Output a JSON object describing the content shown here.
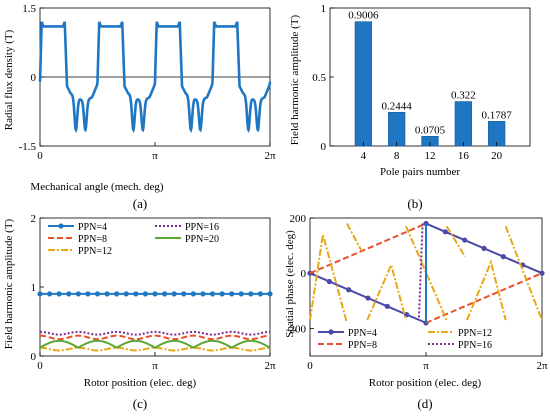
{
  "colors": {
    "blue": "#1f77c4",
    "orange": "#e8502a",
    "yellow": "#e6a817",
    "purple": "#7b2d8e",
    "green": "#5aa832",
    "navy": "#4a4aa6",
    "axis": "#000000"
  },
  "panel_labels": {
    "a": "(a)",
    "b": "(b)",
    "c": "(c)",
    "d": "(d)"
  },
  "chart_data": [
    {
      "id": "a",
      "type": "line",
      "xlabel": "Mechanical angle (mech. deg)",
      "ylabel": "Radial flux density (T)",
      "xlim": [
        0,
        6.2832
      ],
      "ylim": [
        -1.5,
        1.5
      ],
      "xticks": [
        "0",
        "π",
        "2π"
      ],
      "yticks": [
        "-1.5",
        "0",
        "1.5"
      ],
      "zero_line": true,
      "description_of_shape": "period 2π/4 (PPN=4); positive plateau ≈1.15 T with spikes to ≈1.2 T at edges; negative region with double dip to ≈-1.15 T",
      "series": [
        {
          "color": "blue",
          "periods": 4,
          "pos_level": 1.15,
          "neg_level": -1.15,
          "edge_spike": 1.2
        }
      ]
    },
    {
      "id": "b",
      "type": "bar",
      "xlabel": "Pole pairs number",
      "ylabel": "Field harmonic amplitude (T)",
      "categories": [
        "4",
        "8",
        "12",
        "16",
        "20"
      ],
      "values": [
        0.9006,
        0.2444,
        0.0705,
        0.322,
        0.1787
      ],
      "data_labels": [
        "0.9006",
        "0.2444",
        "0.0705",
        "0.322",
        "0.1787"
      ],
      "ylim": [
        0,
        1
      ],
      "yticks": [
        "0",
        "0.5",
        "1"
      ],
      "color": "blue"
    },
    {
      "id": "c",
      "type": "line",
      "xlabel": "Rotor position (elec. deg)",
      "ylabel": "Field harmonic amplitude (T)",
      "xlim": [
        0,
        6.2832
      ],
      "ylim": [
        0,
        2
      ],
      "xticks": [
        "0",
        "π",
        "2π"
      ],
      "yticks": [
        "0",
        "1",
        "2"
      ],
      "legend": [
        "PPN=4",
        "PPN=16",
        "PPN=8",
        "PPN=20",
        "PPN=12"
      ],
      "series": [
        {
          "name": "PPN=4",
          "color": "blue",
          "style": "solid-marker",
          "mean": 0.9,
          "amp": 0.0,
          "ripples": 0
        },
        {
          "name": "PPN=8",
          "color": "orange",
          "style": "dashed",
          "mean": 0.27,
          "amp": 0.025,
          "ripples": 6
        },
        {
          "name": "PPN=12",
          "color": "yellow",
          "style": "dashdot",
          "mean": 0.1,
          "amp": 0.02,
          "ripples": 6
        },
        {
          "name": "PPN=16",
          "color": "purple",
          "style": "dotted",
          "mean": 0.33,
          "amp": 0.02,
          "ripples": 6
        },
        {
          "name": "PPN=20",
          "color": "green",
          "style": "solid",
          "mean": 0.17,
          "amp": 0.1,
          "ripples": 6
        }
      ]
    },
    {
      "id": "d",
      "type": "line",
      "xlabel": "Rotor position (elec. deg)",
      "ylabel": "Spatial phase (elec. deg)",
      "xlim": [
        0,
        6.2832
      ],
      "ylim": [
        -300,
        200
      ],
      "xticks": [
        "0",
        "π",
        "2π"
      ],
      "yticks": [
        "-200",
        "0",
        "200"
      ],
      "legend": [
        "PPN=4",
        "PPN=12",
        "PPN=8",
        "PPN=16"
      ],
      "series": [
        {
          "name": "PPN=4",
          "color": "navy",
          "style": "solid-marker",
          "segments": [
            [
              [
                0,
                0
              ],
              [
                3.1416,
                -180
              ]
            ],
            [
              [
                3.1416,
                180
              ],
              [
                6.2832,
                0
              ]
            ]
          ]
        },
        {
          "name": "PPN=8",
          "color": "orange",
          "style": "dashed",
          "segments": [
            [
              [
                0,
                0
              ],
              [
                3.1416,
                180
              ]
            ],
            [
              [
                3.1416,
                -180
              ],
              [
                6.2832,
                0
              ]
            ]
          ]
        },
        {
          "name": "PPN=12",
          "color": "yellow",
          "style": "dashdot",
          "segments": [
            [
              [
                0,
                -170
              ],
              [
                0.35,
                140
              ],
              [
                1.0,
                -180
              ]
            ],
            [
              [
                1.0,
                180
              ],
              [
                1.4,
                80
              ]
            ],
            [
              [
                1.55,
                -170
              ],
              [
                2.2,
                30
              ],
              [
                2.6,
                -170
              ]
            ],
            [
              [
                2.6,
                170
              ],
              [
                3.7,
                -170
              ]
            ],
            [
              [
                3.7,
                170
              ],
              [
                4.2,
                60
              ]
            ],
            [
              [
                4.25,
                -170
              ],
              [
                4.9,
                40
              ],
              [
                5.3,
                -170
              ]
            ],
            [
              [
                5.3,
                170
              ],
              [
                6.2832,
                -170
              ]
            ]
          ]
        },
        {
          "name": "PPN=16",
          "color": "purple",
          "style": "dotted",
          "segments": [
            [
              [
                2.95,
                -160
              ],
              [
                3.05,
                180
              ]
            ]
          ]
        }
      ]
    }
  ]
}
